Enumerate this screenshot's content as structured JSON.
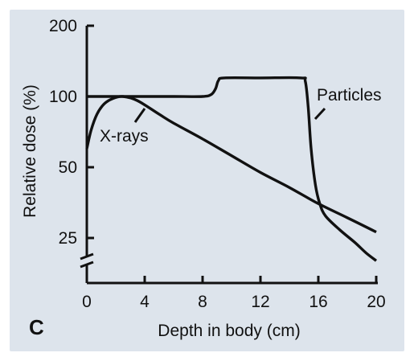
{
  "figure": {
    "panel_label": "C",
    "background": "#dde4ec",
    "ink": "#111111"
  },
  "chart_data": {
    "type": "line",
    "xlabel": "Depth in body (cm)",
    "ylabel": "Relative dose (%)",
    "xlim": [
      0,
      20
    ],
    "x_ticks": [
      0,
      4,
      8,
      12,
      16,
      20
    ],
    "y_scale": "log",
    "ylim": [
      20,
      200
    ],
    "y_ticks": [
      25,
      50,
      100,
      200
    ],
    "y_axis_break": true,
    "grid": false,
    "series": [
      {
        "name": "X-rays",
        "points": [
          [
            0,
            60
          ],
          [
            0.3,
            72
          ],
          [
            0.7,
            84
          ],
          [
            1.2,
            93
          ],
          [
            1.8,
            98
          ],
          [
            2.5,
            100
          ],
          [
            3.5,
            96
          ],
          [
            5,
            84
          ],
          [
            6,
            77
          ],
          [
            8,
            66
          ],
          [
            10,
            56
          ],
          [
            12,
            47.5
          ],
          [
            14,
            41
          ],
          [
            16,
            35
          ],
          [
            18,
            30.5
          ],
          [
            20,
            26.5
          ]
        ]
      },
      {
        "name": "Particles",
        "points": [
          [
            0,
            100
          ],
          [
            2,
            100
          ],
          [
            4,
            100
          ],
          [
            6,
            100
          ],
          [
            8,
            100
          ],
          [
            8.6,
            102
          ],
          [
            8.9,
            108
          ],
          [
            9.1,
            117
          ],
          [
            9.5,
            120
          ],
          [
            12,
            120
          ],
          [
            14.8,
            120
          ],
          [
            15.1,
            116
          ],
          [
            15.3,
            90
          ],
          [
            15.5,
            60
          ],
          [
            15.8,
            42
          ],
          [
            16.1,
            35
          ],
          [
            16.5,
            31
          ],
          [
            17.5,
            27
          ],
          [
            18.5,
            24
          ],
          [
            19.3,
            21.6
          ],
          [
            20,
            20
          ]
        ]
      }
    ]
  }
}
